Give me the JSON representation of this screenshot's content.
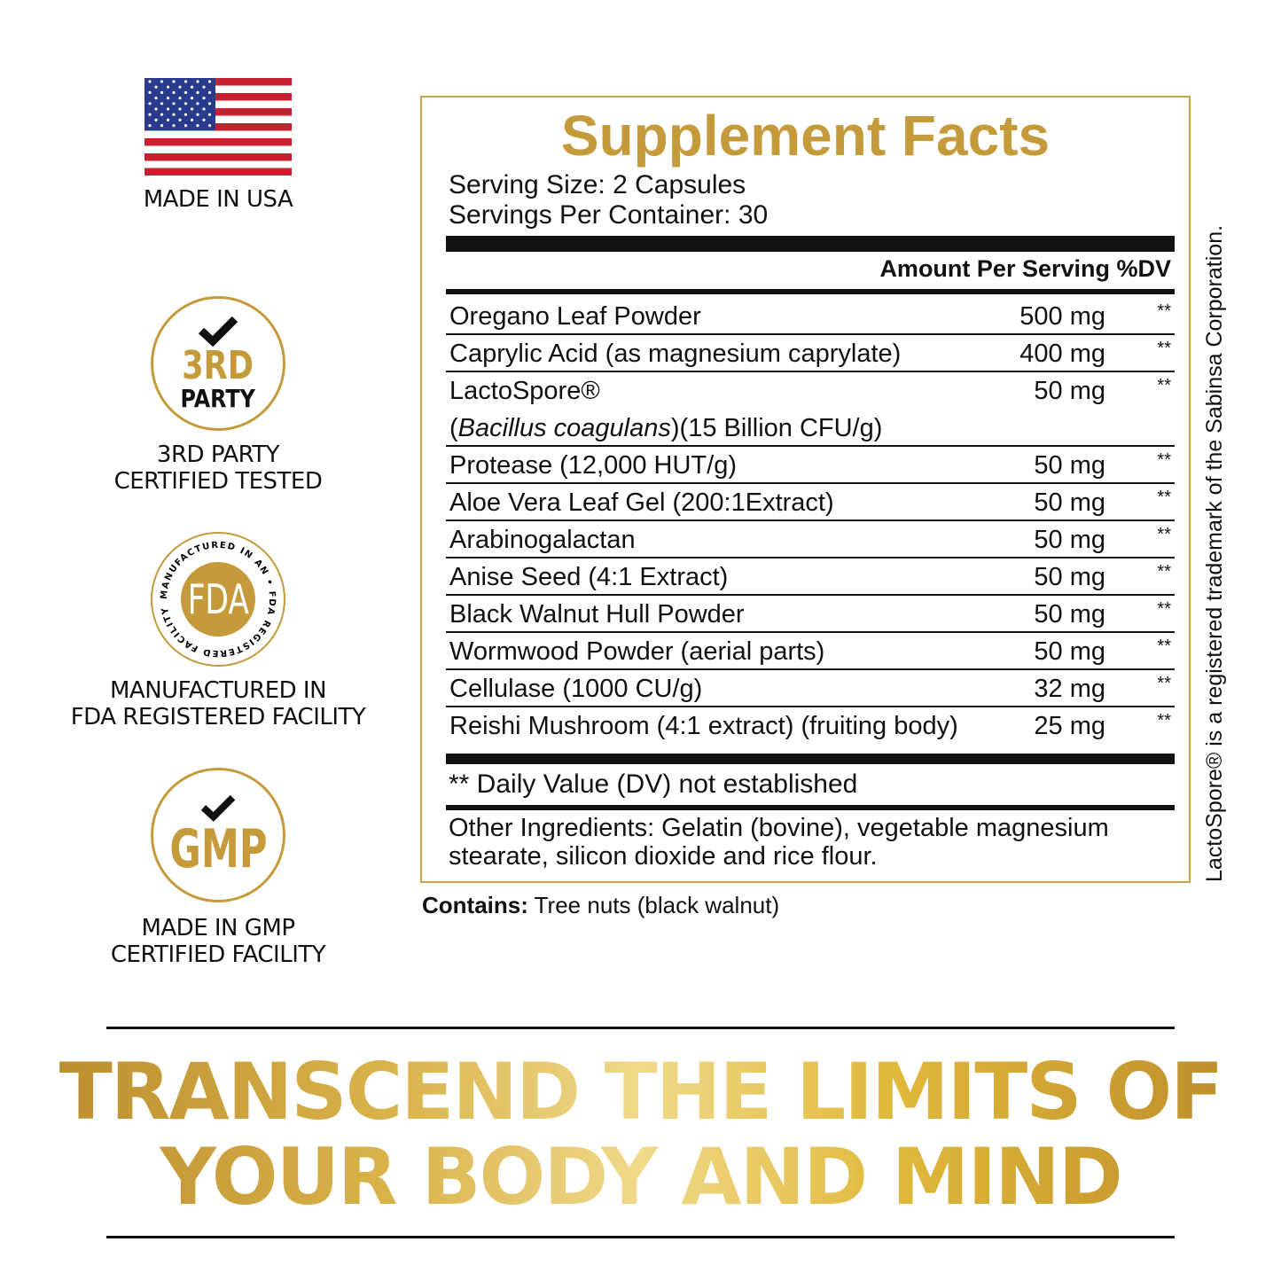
{
  "badges": [
    {
      "icon": "usa-flag-icon",
      "caption": [
        "MADE IN USA"
      ]
    },
    {
      "icon": "third-party-seal-icon",
      "seal_top": "3RD",
      "seal_bottom": "PARTY",
      "caption": [
        "3RD PARTY",
        "CERTIFIED TESTED"
      ]
    },
    {
      "icon": "fda-seal-icon",
      "seal_center": "FDA",
      "seal_ring": "MANUFACTURED IN AN • FDA REGISTERED FACILITY",
      "caption": [
        "MANUFACTURED IN",
        "FDA REGISTERED FACILITY"
      ]
    },
    {
      "icon": "gmp-seal-icon",
      "seal_center": "GMP",
      "caption": [
        "MADE IN GMP",
        "CERTIFIED FACILITY"
      ]
    }
  ],
  "facts": {
    "title": "Supplement Facts",
    "serving_size": "Serving Size:  2 Capsules",
    "servings_per_container": "Servings Per Container: 30",
    "header": "Amount Per Serving %DV",
    "rows": [
      {
        "name": "Oregano Leaf Powder",
        "amount": "500 mg",
        "dv": "**"
      },
      {
        "name": "Caprylic Acid (as magnesium caprylate)",
        "amount": "400 mg",
        "dv": "**"
      },
      {
        "name": "LactoSpore®",
        "sub_italic": "Bacillus coagulans",
        "sub_rest": "(15 Billion CFU/g)",
        "amount": "50 mg",
        "dv": "**"
      },
      {
        "name": "Protease (12,000 HUT/g)",
        "amount": "50 mg",
        "dv": "**"
      },
      {
        "name": "Aloe Vera Leaf Gel (200:1Extract)",
        "amount": "50 mg",
        "dv": "**"
      },
      {
        "name": "Arabinogalactan",
        "amount": "50 mg",
        "dv": "**"
      },
      {
        "name": "Anise Seed (4:1 Extract)",
        "amount": "50 mg",
        "dv": "**"
      },
      {
        "name": "Black Walnut Hull Powder",
        "amount": "50 mg",
        "dv": "**"
      },
      {
        "name": "Wormwood Powder (aerial parts)",
        "amount": "50 mg",
        "dv": "**"
      },
      {
        "name": "Cellulase (1000 CU/g)",
        "amount": "32 mg",
        "dv": "**"
      },
      {
        "name": "Reishi Mushroom (4:1 extract) (fruiting body)",
        "amount": "25 mg",
        "dv": "**"
      }
    ],
    "dv_note": "** Daily Value (DV) not established",
    "other_ingredients": [
      "Other Ingredients: Gelatin (bovine), vegetable magnesium",
      "stearate, silicon dioxide and rice flour."
    ]
  },
  "contains": {
    "label": "Contains:",
    "text": " Tree nuts (black walnut)"
  },
  "trademark": "LactoSpore® is a registered trademark of the Sabinsa Corporation.",
  "slogan": [
    "TRANSCEND THE LIMITS OF",
    "YOUR BODY AND MIND"
  ],
  "colors": {
    "gold": "#c49a3a",
    "black": "#111111"
  }
}
